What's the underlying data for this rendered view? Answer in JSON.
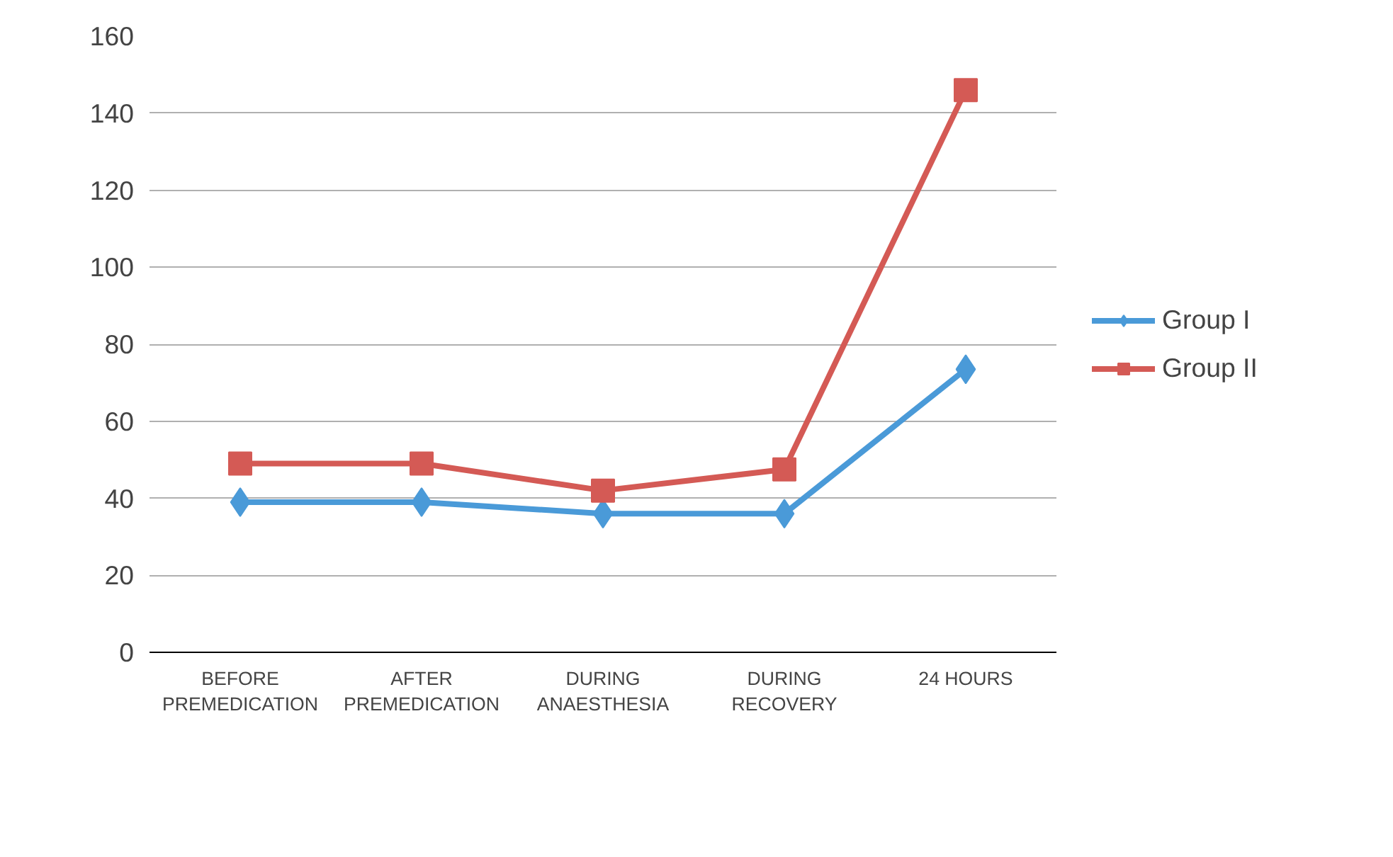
{
  "chart_data": {
    "type": "line",
    "categories": [
      "BEFORE\nPREMEDICATION",
      "AFTER\nPREMEDICATION",
      "DURING\nANAESTHESIA",
      "DURING\nRECOVERY",
      "24 HOURS"
    ],
    "series": [
      {
        "name": "Group I",
        "color": "#4a9ad8",
        "marker": "diamond",
        "values": [
          39,
          39,
          36,
          36,
          73.5
        ]
      },
      {
        "name": "Group II",
        "color": "#d45a55",
        "marker": "square",
        "values": [
          49,
          49,
          42,
          47.5,
          146
        ]
      }
    ],
    "ylim": [
      0,
      160
    ],
    "yticks": [
      0,
      20,
      40,
      60,
      80,
      100,
      120,
      140,
      160
    ],
    "grid": "y",
    "legend": "right",
    "line_style": "solid"
  }
}
